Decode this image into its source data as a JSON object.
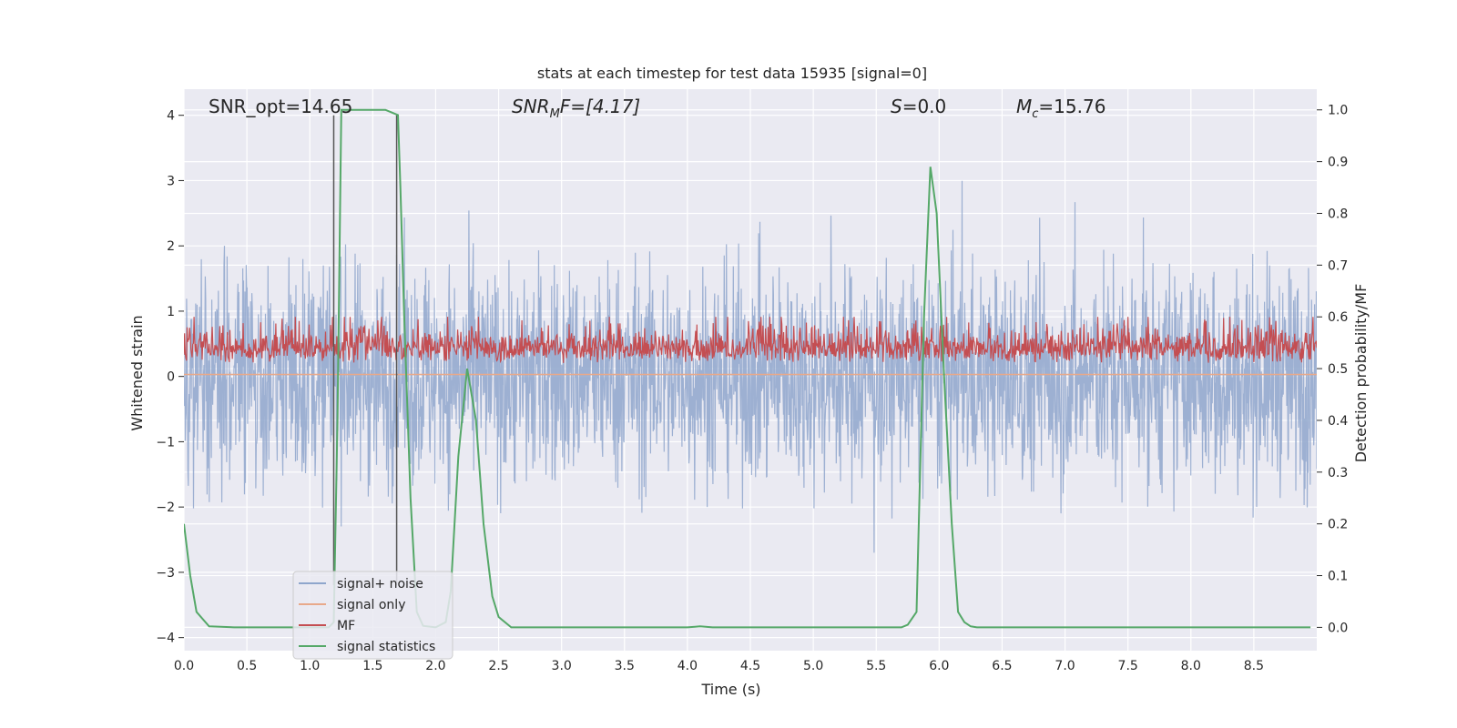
{
  "chart_data": {
    "type": "line",
    "title": "stats at each timestep for test data 15935 [signal=0]",
    "xlabel": "Time (s)",
    "ylabel_left": "Whitened strain",
    "ylabel_right": "Detection probability/MF",
    "xlim": [
      0.0,
      9.0
    ],
    "ylim_left": [
      -4.2,
      4.4
    ],
    "ylim_right": [
      -0.045,
      1.04
    ],
    "xticks": [
      "0.0",
      "0.5",
      "1.0",
      "1.5",
      "2.0",
      "2.5",
      "3.0",
      "3.5",
      "4.0",
      "4.5",
      "5.0",
      "5.5",
      "6.0",
      "6.5",
      "7.0",
      "7.5",
      "8.0",
      "8.5"
    ],
    "yticks_left": [
      "4",
      "3",
      "2",
      "1",
      "0",
      "−1",
      "−2",
      "−3",
      "−4"
    ],
    "yticks_left_values": [
      4,
      3,
      2,
      1,
      0,
      -1,
      -2,
      -3,
      -4
    ],
    "yticks_right": [
      "1.0",
      "0.9",
      "0.8",
      "0.7",
      "0.6",
      "0.5",
      "0.4",
      "0.3",
      "0.2",
      "0.1",
      "0.0"
    ],
    "yticks_right_values": [
      1.0,
      0.9,
      0.8,
      0.7,
      0.6,
      0.5,
      0.4,
      0.3,
      0.2,
      0.1,
      0.0
    ],
    "annotations": {
      "snr_opt": "SNR_opt=14.65",
      "snr_mf_main": "SNR",
      "snr_mf_sub": "M",
      "snr_mf_rest": "F=[4.17]",
      "s_main": "S",
      "s_rest": "=0.0",
      "mc_main": "M",
      "mc_sub": "c",
      "mc_rest": "=15.76"
    },
    "legend": {
      "placement": "lower-left",
      "entries": [
        {
          "label": "signal+ noise",
          "color": "#8fa6cc"
        },
        {
          "label": "signal only",
          "color": "#e8a98a"
        },
        {
          "label": "MF",
          "color": "#c44e52"
        },
        {
          "label": "signal statistics",
          "color": "#55a868"
        }
      ]
    },
    "series": [
      {
        "name": "signal statistics",
        "axis": "right",
        "color": "#55a868",
        "x": [
          0.0,
          0.05,
          0.1,
          0.2,
          0.4,
          0.8,
          1.0,
          1.15,
          1.19,
          1.22,
          1.25,
          1.3,
          1.4,
          1.6,
          1.65,
          1.7,
          1.72,
          1.75,
          1.8,
          1.85,
          1.9,
          2.0,
          2.08,
          2.12,
          2.18,
          2.25,
          2.32,
          2.38,
          2.45,
          2.5,
          2.6,
          3.0,
          4.0,
          4.1,
          4.2,
          5.0,
          5.7,
          5.75,
          5.82,
          5.88,
          5.93,
          5.98,
          6.04,
          6.1,
          6.15,
          6.2,
          6.25,
          6.3,
          7.0,
          8.0,
          8.95
        ],
        "y": [
          0.2,
          0.1,
          0.03,
          0.002,
          0.0,
          0.0,
          0.0,
          0.0,
          0.01,
          0.4,
          1.0,
          1.0,
          1.0,
          1.0,
          0.995,
          0.99,
          0.85,
          0.6,
          0.25,
          0.03,
          0.003,
          0.0,
          0.01,
          0.07,
          0.33,
          0.5,
          0.4,
          0.2,
          0.06,
          0.02,
          0.0,
          0.0,
          0.0,
          0.002,
          0.0,
          0.0,
          0.0,
          0.005,
          0.03,
          0.6,
          0.89,
          0.8,
          0.48,
          0.2,
          0.03,
          0.01,
          0.002,
          0.0,
          0.0,
          0.0,
          0.0
        ]
      },
      {
        "name": "event markers",
        "axis": "left",
        "color": "#555555",
        "x": [
          1.19,
          1.69
        ],
        "y_top": [
          4.0,
          4.0
        ],
        "y_bottom": [
          -3.2,
          -3.2
        ]
      }
    ]
  }
}
